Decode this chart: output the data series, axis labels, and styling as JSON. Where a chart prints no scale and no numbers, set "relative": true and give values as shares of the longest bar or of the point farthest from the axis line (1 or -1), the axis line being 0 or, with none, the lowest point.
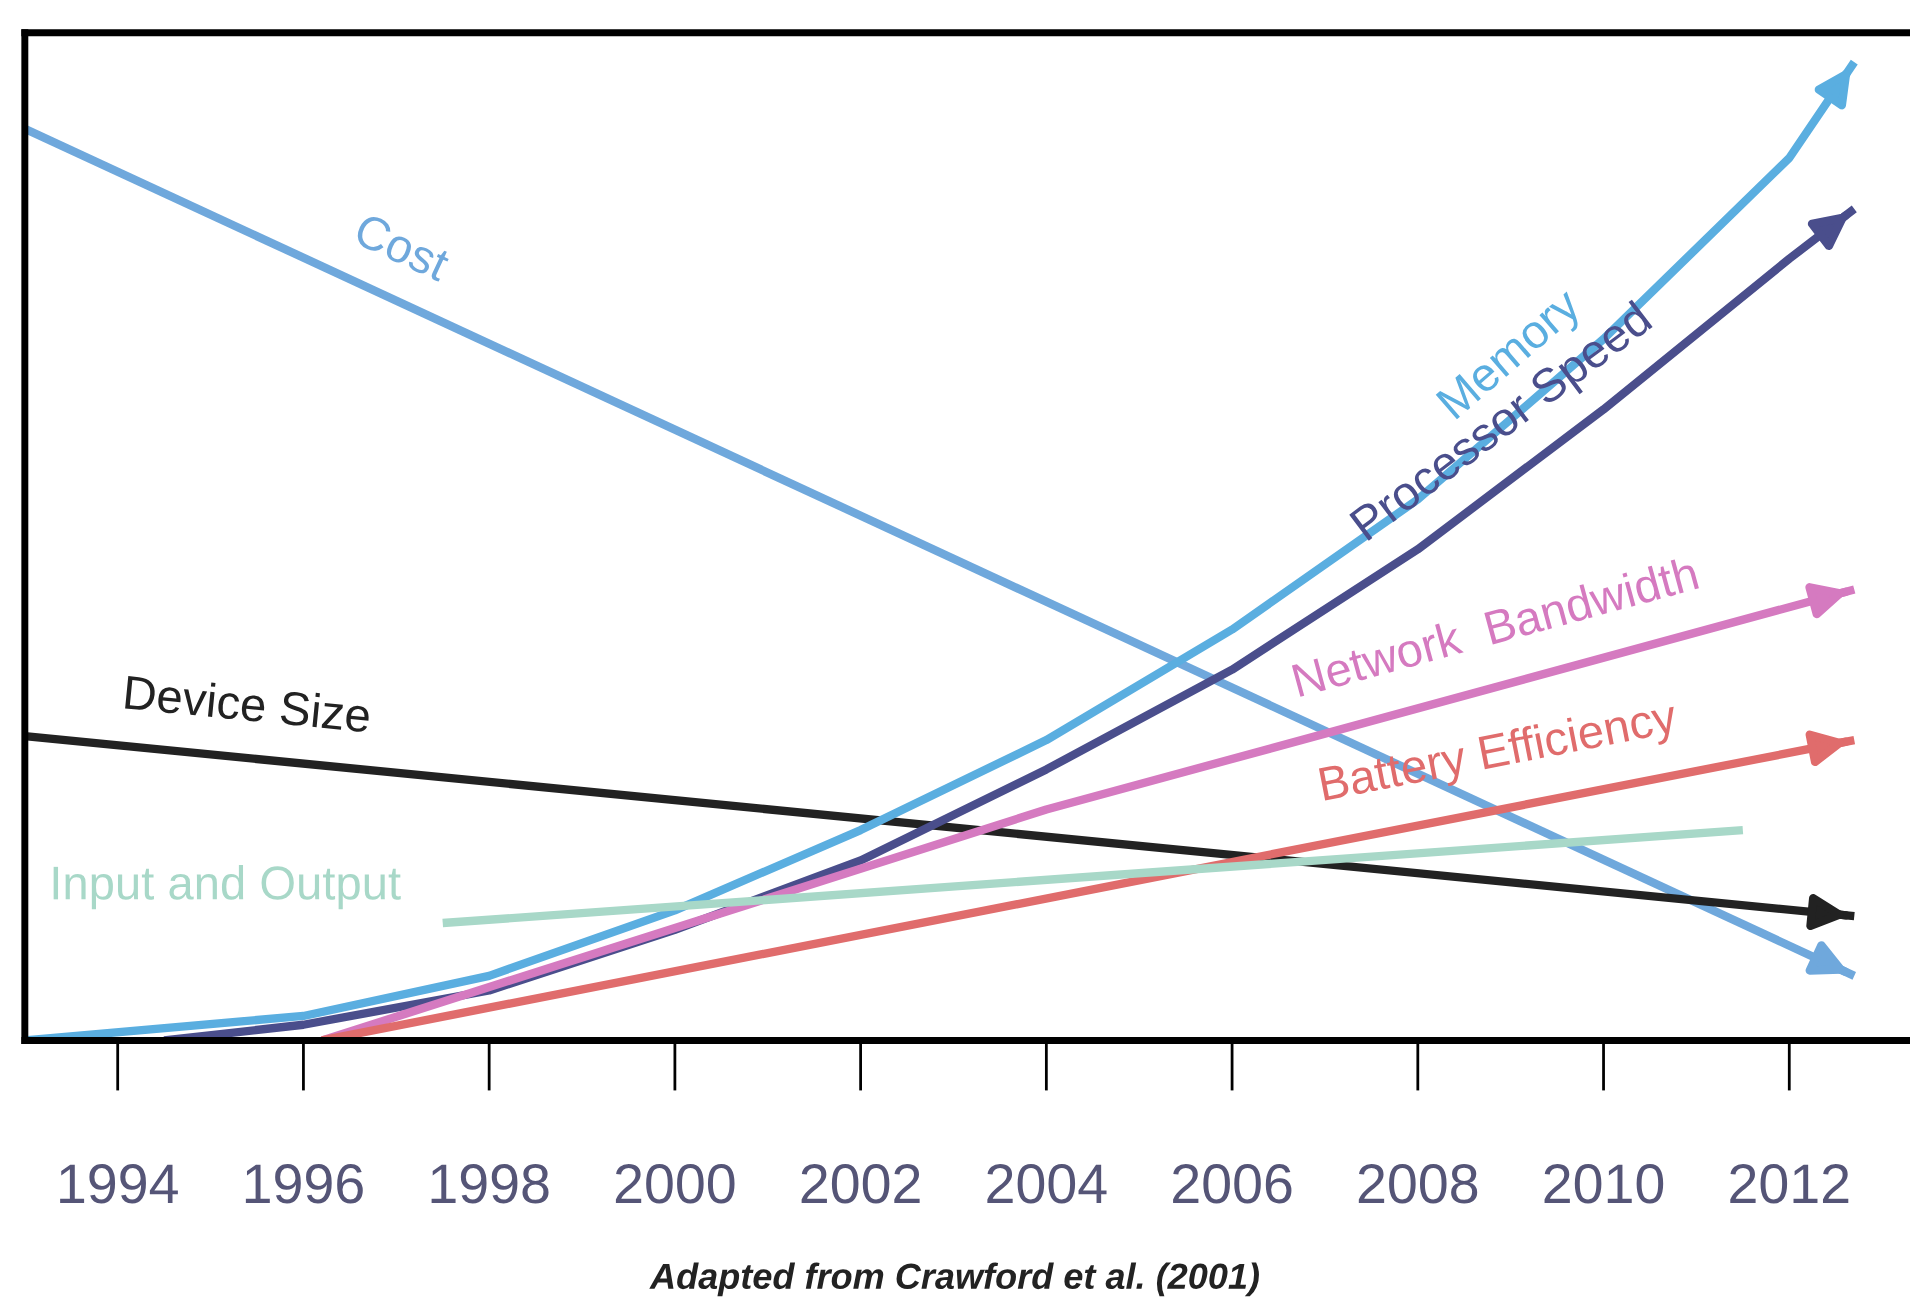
{
  "chart_data": {
    "type": "line",
    "relative": true,
    "line_style": "solid",
    "xlim": [
      1993.0,
      2013.3
    ],
    "xticks": [
      1994,
      1996,
      1998,
      2000,
      2002,
      2004,
      2006,
      2008,
      2010,
      2012
    ],
    "annotations": [
      "Adapted from Crawford et al. (2001)"
    ],
    "series": [
      {
        "name": "Cost",
        "color": "#6fa8dc",
        "x": [
          1993.0,
          2012.7
        ],
        "values": [
          0.932,
          0.066
        ]
      },
      {
        "name": "Device Size",
        "color": "#222222",
        "x": [
          1993.0,
          2012.7
        ],
        "values": [
          0.311,
          0.127
        ]
      },
      {
        "name": "Memory",
        "color": "#5aaee0",
        "x": [
          1993.0,
          1996,
          1998,
          2000,
          2002,
          2004,
          2006,
          2008,
          2010,
          2012,
          2012.7
        ],
        "values": [
          0,
          0.025,
          0.066,
          0.133,
          0.215,
          0.307,
          0.42,
          0.553,
          0.717,
          0.902,
          1
        ]
      },
      {
        "name": "Processor Speed",
        "color": "#4a4e8c",
        "x": [
          1994.5,
          1996,
          1998,
          2000,
          2002,
          2004,
          2006,
          2008,
          2010,
          2012,
          2012.7
        ],
        "values": [
          0,
          0.016,
          0.051,
          0.113,
          0.184,
          0.277,
          0.379,
          0.502,
          0.645,
          0.799,
          0.85
        ]
      },
      {
        "name": "Network  Bandwidth",
        "color": "#d57ac0",
        "x": [
          1996.2,
          2004,
          2012.7
        ],
        "values": [
          0,
          0.236,
          0.461
        ]
      },
      {
        "name": "Battery Efficiency",
        "color": "#e06c6c",
        "x": [
          1996.2,
          2012.7
        ],
        "values": [
          0,
          0.307
        ]
      },
      {
        "name": "Input and Output",
        "color": "#a8d8c8",
        "x": [
          1997.5,
          2011.5
        ],
        "values": [
          0.12,
          0.215
        ]
      }
    ]
  }
}
